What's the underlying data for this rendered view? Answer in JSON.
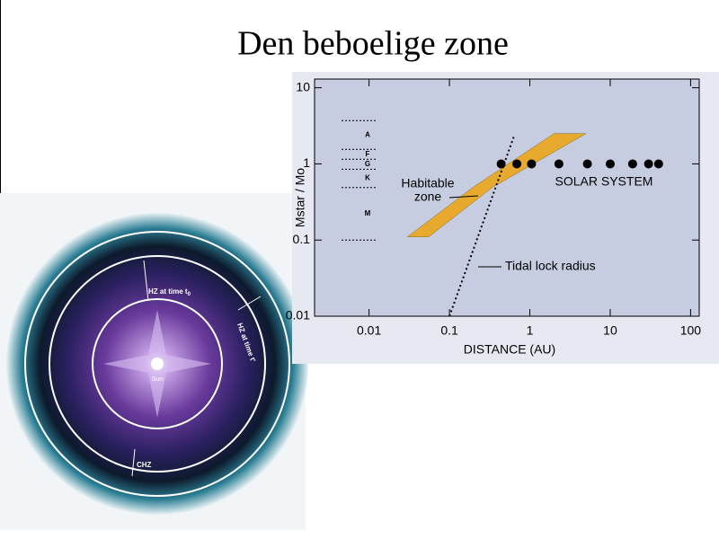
{
  "slide_title": "Den beboelige zone",
  "chart_data": {
    "type": "scatter",
    "xlabel": "DISTANCE (AU)",
    "ylabel": "Mstar / Mo",
    "xscale": "log",
    "yscale": "log",
    "xlim": [
      0.0021,
      128
    ],
    "ylim": [
      0.01,
      13
    ],
    "xticks": [
      0.01,
      0.1,
      1,
      10,
      100
    ],
    "yticks": [
      0.01,
      0.1,
      1,
      10
    ],
    "series": [
      {
        "name": "SOLAR SYSTEM",
        "color": "#000000",
        "x": [
          0.44,
          0.69,
          1.05,
          2.3,
          5.2,
          10,
          19,
          30,
          40
        ],
        "values": [
          1,
          1,
          1,
          1,
          1,
          1,
          1,
          1,
          1
        ]
      }
    ],
    "habitable_zone": {
      "label": [
        "Habitable",
        "zone"
      ],
      "color": "#e8aa2e",
      "inner_x": [
        0.03,
        0.2,
        2
      ],
      "inner_y": [
        0.11,
        0.5,
        2.5
      ],
      "outer_x": [
        0.055,
        0.35,
        5
      ],
      "outer_y": [
        0.11,
        0.5,
        2.5
      ]
    },
    "tidal_lock": {
      "label": "Tidal lock radius",
      "x": [
        0.1,
        0.63
      ],
      "values": [
        0.01,
        2.25
      ]
    },
    "spectral_classes": {
      "labels": [
        "A",
        "F",
        "G",
        "K",
        "M"
      ],
      "boundaries": [
        3.7,
        1.55,
        1.15,
        0.85,
        0.49,
        0.1
      ]
    }
  },
  "image": {
    "labels": [
      "HZ at time t",
      "0",
      "HZ at time t'",
      "Sun",
      "CHZ"
    ]
  }
}
